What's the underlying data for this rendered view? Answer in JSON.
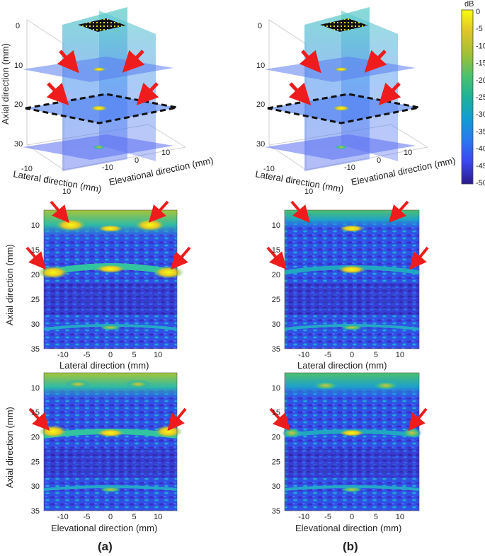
{
  "colorbar": {
    "unit": "dB",
    "ticks": [
      "0",
      "-5",
      "-10",
      "-15",
      "-20",
      "-25",
      "-30",
      "-35",
      "-40",
      "-45",
      "-50"
    ],
    "colors": [
      "#f9fb0e",
      "#dfc22a",
      "#a3c034",
      "#5cc162",
      "#26b592",
      "#10a2c6",
      "#1d8de0",
      "#2f6ef5",
      "#3b4ef4",
      "#3d2ed0",
      "#2a1a8a"
    ]
  },
  "panels": {
    "a": {
      "label": "(a)",
      "volume": {
        "axial_label": "Axial direction (mm)",
        "lateral_label": "Lateral direction (mm)",
        "elevational_label": "Elevational direction (mm)",
        "axial_ticks": [
          "0",
          "10",
          "20",
          "30"
        ],
        "lateral_ticks": [
          "-10",
          "0",
          "10"
        ],
        "elevational_ticks": [
          "-10",
          "0",
          "10"
        ]
      },
      "slice_lateral": {
        "ylabel": "Axial direction (mm)",
        "xlabel": "Lateral direction (mm)",
        "yticks": [
          "10",
          "15",
          "20",
          "25",
          "30",
          "35"
        ],
        "xticks": [
          "-10",
          "-5",
          "0",
          "5",
          "10"
        ]
      },
      "slice_elevational": {
        "ylabel": "Axial direction (mm)",
        "xlabel": "Elevational direction (mm)",
        "yticks": [
          "10",
          "15",
          "20",
          "25",
          "30",
          "35"
        ],
        "xticks": [
          "-10",
          "-5",
          "0",
          "5",
          "10"
        ]
      }
    },
    "b": {
      "label": "(b)",
      "volume": {
        "lateral_label": "Lateral direction (mm)",
        "elevational_label": "Elevational direction (mm)",
        "axial_ticks": [
          "0",
          "10",
          "20",
          "30"
        ],
        "lateral_ticks": [
          "-10",
          "0",
          "10"
        ],
        "elevational_ticks": [
          "-10",
          "0",
          "10"
        ]
      },
      "slice_lateral": {
        "xlabel": "Lateral direction (mm)",
        "yticks": [
          "10",
          "15",
          "20",
          "25",
          "30",
          "35"
        ],
        "xticks": [
          "-10",
          "-5",
          "0",
          "5",
          "10"
        ]
      },
      "slice_elevational": {
        "xlabel": "Elevational direction (mm)",
        "yticks": [
          "10",
          "15",
          "20",
          "25",
          "30",
          "35"
        ],
        "xticks": [
          "-10",
          "-5",
          "0",
          "5",
          "10"
        ]
      }
    }
  }
}
